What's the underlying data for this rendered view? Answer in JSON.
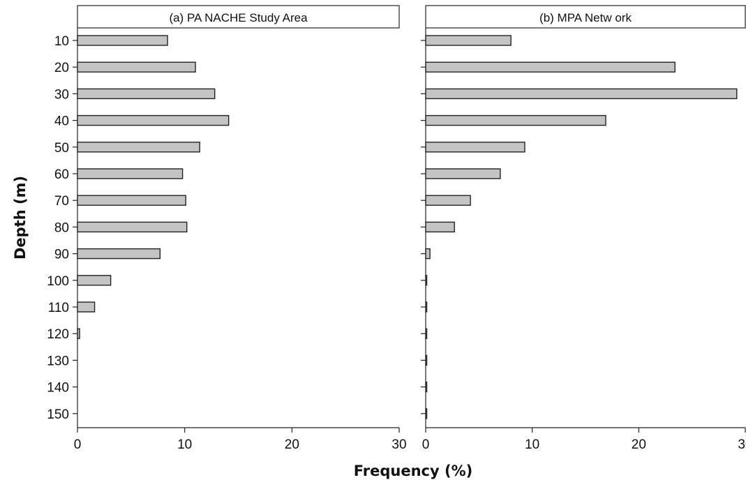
{
  "chart_data": {
    "type": "bar",
    "orientation": "horizontal",
    "xlabel": "Frequency (%)",
    "ylabel": "Depth (m)",
    "categories": [
      "10",
      "20",
      "30",
      "40",
      "50",
      "60",
      "70",
      "80",
      "90",
      "100",
      "110",
      "120",
      "130",
      "140",
      "150"
    ],
    "xlim": [
      0,
      30
    ],
    "xticks": [
      0,
      10,
      20,
      30
    ],
    "bar_color": "#c4c4c4",
    "panels": [
      {
        "title": "(a) PA NACHE Study Area",
        "values": [
          8.4,
          11.0,
          12.8,
          14.1,
          11.4,
          9.8,
          10.1,
          10.2,
          7.7,
          3.1,
          1.6,
          0.2,
          0,
          0,
          0
        ]
      },
      {
        "title": "(b) MPA Netw ork",
        "values": [
          8.0,
          23.4,
          29.2,
          16.9,
          9.3,
          7.0,
          4.2,
          2.7,
          0.4,
          0.1,
          0.1,
          0.1,
          0.1,
          0.1,
          0.1
        ]
      }
    ]
  }
}
